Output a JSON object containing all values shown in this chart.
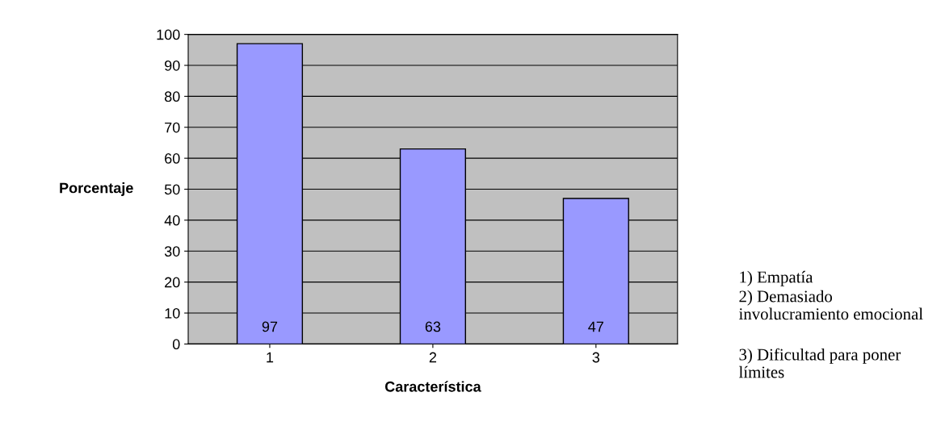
{
  "chart_data": {
    "type": "bar",
    "xlabel": "Característica",
    "ylabel": "Porcentaje",
    "categories": [
      "1",
      "2",
      "3"
    ],
    "values": [
      97,
      63,
      47
    ],
    "color": "#9999ff",
    "data_labels": true,
    "ylim": [
      0,
      100
    ],
    "yticks": [
      0,
      10,
      20,
      30,
      40,
      50,
      60,
      70,
      80,
      90,
      100
    ],
    "grid": "y",
    "legend": false,
    "annotations": [
      "1) Empatía",
      "2) Demasiado involucramiento emocional",
      "3) Dificultad para poner límites"
    ]
  }
}
